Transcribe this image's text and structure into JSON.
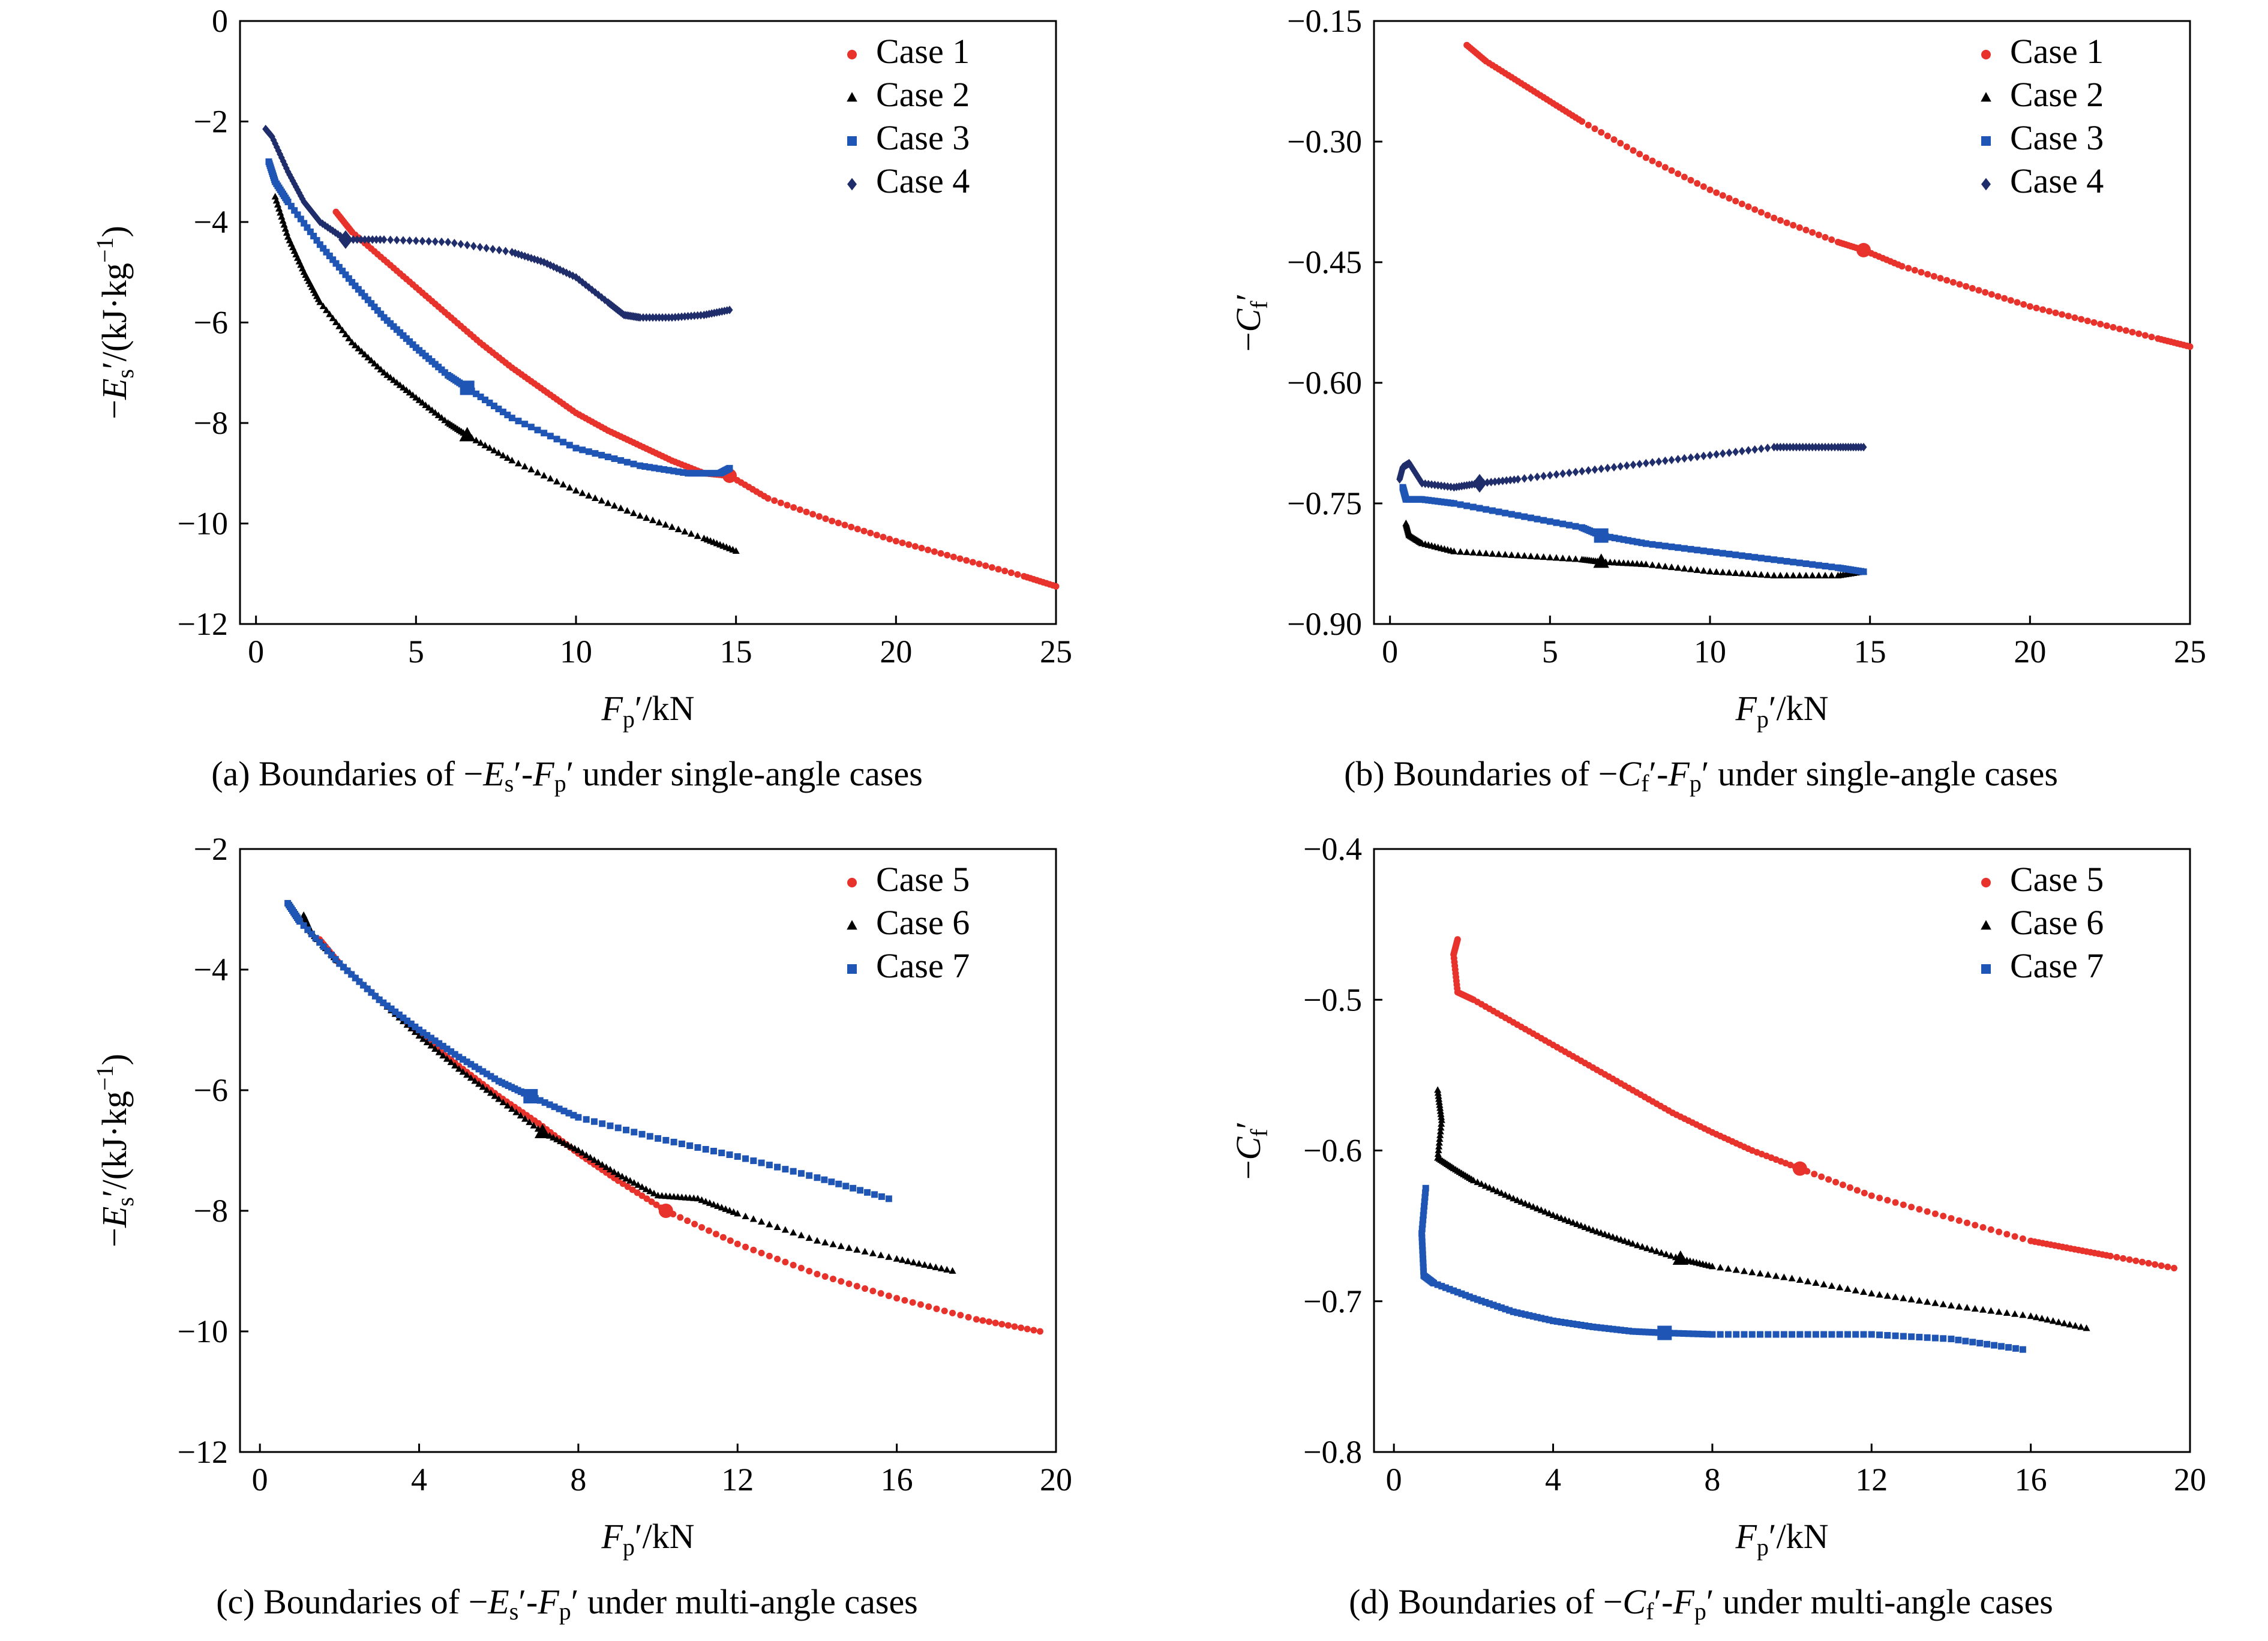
{
  "panels": [
    {
      "id": "a",
      "caption": {
        "prefix": "(a) Boundaries of −",
        "y": "E",
        "ysub": "s",
        "mid": "′-",
        "x": "F",
        "xsub": "p",
        "suffix": "′ under single-angle cases"
      }
    },
    {
      "id": "b",
      "caption": {
        "prefix": "(b) Boundaries of −",
        "y": "C",
        "ysub": "f",
        "mid": "′-",
        "x": "F",
        "xsub": "p",
        "suffix": "′ under single-angle cases"
      }
    },
    {
      "id": "c",
      "caption": {
        "prefix": "(c) Boundaries of −",
        "y": "E",
        "ysub": "s",
        "mid": "′-",
        "x": "F",
        "xsub": "p",
        "suffix": "′ under multi-angle cases"
      }
    },
    {
      "id": "d",
      "caption": {
        "prefix": "(d) Boundaries of −",
        "y": "C",
        "ysub": "f",
        "mid": "′-",
        "x": "F",
        "xsub": "p",
        "suffix": "′ under multi-angle cases"
      }
    }
  ],
  "colors": {
    "red": "#e8322c",
    "black": "#000000",
    "blue": "#1f56b5",
    "navy": "#1f2d6b"
  },
  "chart_data": [
    {
      "type": "scatter",
      "title": "",
      "xlabel": "Fp′/kN",
      "ylabel": "−Es′/(kJ·kg⁻¹)",
      "xlim": [
        -0.5,
        25
      ],
      "ylim": [
        -12,
        0
      ],
      "xticks": [
        "0",
        "5",
        "10",
        "15",
        "20",
        "25"
      ],
      "yticks": [
        "0",
        "−2",
        "−4",
        "−6",
        "−8",
        "−10",
        "−12"
      ],
      "legend": "top-right",
      "series": [
        {
          "name": "Case 1",
          "color": "#e8322c",
          "marker": "circle",
          "x": [
            2.5,
            3,
            4,
            5,
            6,
            7,
            8,
            9,
            10,
            11,
            12,
            13,
            14,
            14.8,
            16,
            18,
            20,
            22,
            24,
            25
          ],
          "y": [
            -3.8,
            -4.2,
            -4.75,
            -5.3,
            -5.85,
            -6.4,
            -6.9,
            -7.35,
            -7.8,
            -8.15,
            -8.45,
            -8.75,
            -9.0,
            -9.05,
            -9.5,
            -9.95,
            -10.35,
            -10.7,
            -11.05,
            -11.25
          ],
          "highlight": [
            14.8,
            -9.05
          ]
        },
        {
          "name": "Case 2",
          "color": "#000000",
          "marker": "triangle",
          "x": [
            0.6,
            1,
            1.5,
            2,
            3,
            4,
            5,
            6,
            6.6,
            8,
            10,
            12,
            14,
            15
          ],
          "y": [
            -3.5,
            -4.3,
            -5.0,
            -5.6,
            -6.4,
            -7.0,
            -7.5,
            -8.0,
            -8.25,
            -8.75,
            -9.35,
            -9.85,
            -10.3,
            -10.55
          ],
          "highlight": [
            6.6,
            -8.25
          ]
        },
        {
          "name": "Case 3",
          "color": "#1f56b5",
          "marker": "square",
          "x": [
            0.4,
            0.6,
            1,
            2,
            3,
            4,
            5,
            6,
            6.6,
            8,
            10,
            12,
            13.5,
            14.5,
            14.8
          ],
          "y": [
            -2.8,
            -3.2,
            -3.6,
            -4.45,
            -5.2,
            -5.9,
            -6.5,
            -7.05,
            -7.3,
            -7.9,
            -8.5,
            -8.85,
            -9.0,
            -9.0,
            -8.9
          ],
          "highlight": [
            6.6,
            -7.3
          ]
        },
        {
          "name": "Case 4",
          "color": "#1f2d6b",
          "marker": "diamond",
          "x": [
            0.3,
            0.5,
            1,
            1.5,
            2,
            2.8,
            4,
            6,
            8,
            9,
            10,
            11,
            11.5,
            12,
            13,
            14,
            14.8
          ],
          "y": [
            -2.15,
            -2.3,
            -3.0,
            -3.6,
            -4.0,
            -4.35,
            -4.35,
            -4.4,
            -4.6,
            -4.8,
            -5.1,
            -5.6,
            -5.85,
            -5.9,
            -5.9,
            -5.85,
            -5.75
          ],
          "highlight": [
            2.8,
            -4.35
          ]
        }
      ]
    },
    {
      "type": "scatter",
      "title": "",
      "xlabel": "Fp′/kN",
      "ylabel": "−Cf′",
      "xlim": [
        -0.5,
        25
      ],
      "ylim": [
        -0.9,
        -0.15
      ],
      "xticks": [
        "0",
        "5",
        "10",
        "15",
        "20",
        "25"
      ],
      "yticks": [
        "−0.15",
        "−0.30",
        "−0.45",
        "−0.60",
        "−0.75",
        "−0.90"
      ],
      "legend": "top-right",
      "series": [
        {
          "name": "Case 1",
          "color": "#e8322c",
          "marker": "circle",
          "x": [
            2.4,
            3,
            4,
            5,
            6,
            8,
            10,
            12,
            14,
            14.8,
            16,
            18,
            20,
            22,
            24,
            25
          ],
          "y": [
            -0.18,
            -0.2,
            -0.225,
            -0.25,
            -0.275,
            -0.32,
            -0.36,
            -0.395,
            -0.425,
            -0.435,
            -0.455,
            -0.48,
            -0.505,
            -0.525,
            -0.545,
            -0.555
          ],
          "highlight": [
            14.8,
            -0.435
          ]
        },
        {
          "name": "Case 2",
          "color": "#000000",
          "marker": "triangle",
          "x": [
            0.5,
            0.6,
            1,
            2,
            4,
            6,
            6.6,
            8,
            10,
            12,
            14,
            14.8
          ],
          "y": [
            -0.775,
            -0.79,
            -0.8,
            -0.81,
            -0.815,
            -0.82,
            -0.823,
            -0.826,
            -0.835,
            -0.84,
            -0.84,
            -0.835
          ],
          "highlight": [
            6.6,
            -0.823
          ]
        },
        {
          "name": "Case 3",
          "color": "#1f56b5",
          "marker": "square",
          "x": [
            0.4,
            0.5,
            1,
            2,
            4,
            6,
            6.6,
            8,
            10,
            12,
            14,
            14.8
          ],
          "y": [
            -0.73,
            -0.745,
            -0.745,
            -0.75,
            -0.765,
            -0.78,
            -0.79,
            -0.8,
            -0.81,
            -0.82,
            -0.83,
            -0.835
          ],
          "highlight": [
            6.6,
            -0.79
          ]
        },
        {
          "name": "Case 4",
          "color": "#1f2d6b",
          "marker": "diamond",
          "x": [
            0.3,
            0.4,
            0.6,
            1,
            2,
            2.8,
            4,
            6,
            8,
            10,
            12,
            13,
            14,
            14.8
          ],
          "y": [
            -0.72,
            -0.705,
            -0.7,
            -0.725,
            -0.73,
            -0.725,
            -0.72,
            -0.71,
            -0.7,
            -0.69,
            -0.68,
            -0.68,
            -0.68,
            -0.68
          ],
          "highlight": [
            2.8,
            -0.725
          ]
        }
      ]
    },
    {
      "type": "scatter",
      "title": "",
      "xlabel": "Fp′/kN",
      "ylabel": "−Es′/(kJ·kg⁻¹)",
      "xlim": [
        -0.5,
        20
      ],
      "ylim": [
        -12,
        -2
      ],
      "xticks": [
        "0",
        "4",
        "8",
        "12",
        "16",
        "20"
      ],
      "yticks": [
        "−2",
        "−4",
        "−6",
        "−8",
        "−10",
        "−12"
      ],
      "legend": "top-right",
      "series": [
        {
          "name": "Case 5",
          "color": "#e8322c",
          "marker": "circle",
          "x": [
            1.5,
            2,
            3,
            4,
            5,
            6,
            7,
            8,
            9,
            10.2,
            12,
            14,
            16,
            18,
            19.6
          ],
          "y": [
            -3.5,
            -3.9,
            -4.5,
            -5.05,
            -5.6,
            -6.1,
            -6.55,
            -7.05,
            -7.5,
            -8.0,
            -8.55,
            -9.05,
            -9.45,
            -9.8,
            -10.0
          ],
          "highlight": [
            10.2,
            -8.0
          ]
        },
        {
          "name": "Case 6",
          "color": "#000000",
          "marker": "triangle",
          "x": [
            1.1,
            1.3,
            2,
            3,
            4,
            5,
            6,
            7.1,
            8,
            9,
            10,
            11,
            12,
            14,
            16,
            17.4
          ],
          "y": [
            -3.1,
            -3.4,
            -3.9,
            -4.5,
            -5.1,
            -5.65,
            -6.15,
            -6.7,
            -7.0,
            -7.4,
            -7.75,
            -7.8,
            -8.05,
            -8.5,
            -8.8,
            -9.0
          ],
          "highlight": [
            7.1,
            -6.7
          ]
        },
        {
          "name": "Case 7",
          "color": "#1f56b5",
          "marker": "square",
          "x": [
            0.7,
            1,
            2,
            3,
            4,
            5,
            6,
            6.8,
            8,
            10,
            12,
            14,
            15.8
          ],
          "y": [
            -2.9,
            -3.2,
            -3.9,
            -4.5,
            -5.0,
            -5.45,
            -5.85,
            -6.1,
            -6.45,
            -6.8,
            -7.1,
            -7.45,
            -7.8
          ],
          "highlight": [
            6.8,
            -6.1
          ]
        }
      ]
    },
    {
      "type": "scatter",
      "title": "",
      "xlabel": "Fp′/kN",
      "ylabel": "−Cf′",
      "xlim": [
        -0.5,
        20
      ],
      "ylim": [
        -0.8,
        -0.4
      ],
      "xticks": [
        "0",
        "4",
        "8",
        "12",
        "16",
        "20"
      ],
      "yticks": [
        "−0.4",
        "−0.5",
        "−0.6",
        "−0.7",
        "−0.8"
      ],
      "legend": "top-right",
      "series": [
        {
          "name": "Case 5",
          "color": "#e8322c",
          "marker": "circle",
          "x": [
            1.6,
            1.5,
            1.6,
            2,
            3,
            4,
            5,
            6,
            7,
            8,
            9,
            10.2,
            12,
            14,
            16,
            17,
            18,
            19.6
          ],
          "y": [
            -0.46,
            -0.47,
            -0.495,
            -0.5,
            -0.515,
            -0.53,
            -0.545,
            -0.56,
            -0.575,
            -0.588,
            -0.6,
            -0.612,
            -0.63,
            -0.645,
            -0.66,
            -0.665,
            -0.67,
            -0.678
          ],
          "highlight": [
            10.2,
            -0.612
          ]
        },
        {
          "name": "Case 6",
          "color": "#000000",
          "marker": "triangle",
          "x": [
            1.1,
            1.2,
            1.1,
            1.5,
            2,
            3,
            4,
            5,
            6,
            7.2,
            8,
            10,
            12,
            14,
            16,
            17.4
          ],
          "y": [
            -0.56,
            -0.58,
            -0.605,
            -0.612,
            -0.62,
            -0.632,
            -0.643,
            -0.653,
            -0.662,
            -0.672,
            -0.677,
            -0.685,
            -0.695,
            -0.703,
            -0.71,
            -0.718
          ],
          "highlight": [
            7.2,
            -0.672
          ]
        },
        {
          "name": "Case 7",
          "color": "#1f56b5",
          "marker": "square",
          "x": [
            0.8,
            0.7,
            0.75,
            1,
            2,
            3,
            4,
            5,
            6,
            6.8,
            8,
            10,
            12,
            14,
            15.8
          ],
          "y": [
            -0.625,
            -0.655,
            -0.683,
            -0.688,
            -0.698,
            -0.707,
            -0.713,
            -0.717,
            -0.72,
            -0.721,
            -0.722,
            -0.722,
            -0.722,
            -0.725,
            -0.732
          ],
          "highlight": [
            6.8,
            -0.721
          ]
        }
      ]
    }
  ]
}
